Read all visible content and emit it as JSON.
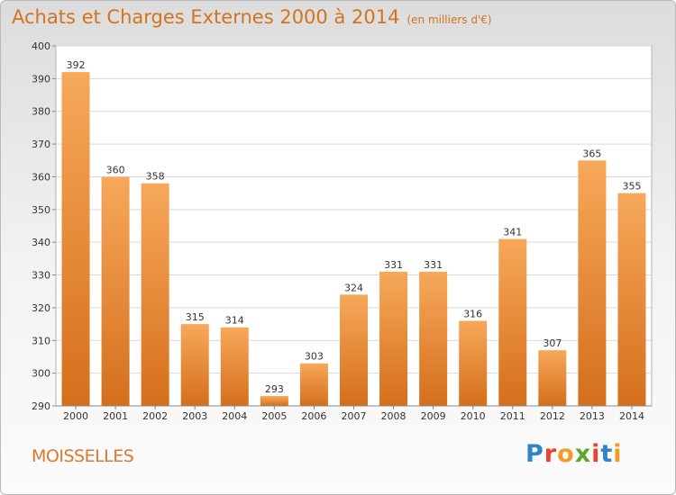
{
  "header": {
    "title": "Achats et Charges Externes 2000 à 2014",
    "subtitle": "(en milliers d'€)"
  },
  "footer": {
    "commune": "MOISSELLES",
    "logo_letters": [
      "P",
      "r",
      "o",
      "x",
      "i",
      "t",
      "i"
    ]
  },
  "colors": {
    "title": "#d4731e",
    "bar_top": "#f7a85a",
    "bar_bottom": "#d46f1c",
    "logo": [
      "#2f83c9",
      "#e8442f",
      "#f39c24",
      "#5aa832",
      "#e8442f",
      "#2f83c9",
      "#f39c24"
    ]
  },
  "chart_data": {
    "type": "bar",
    "title": "Achats et Charges Externes 2000 à 2014",
    "subtitle": "(en milliers d'€)",
    "categories": [
      "2000",
      "2001",
      "2002",
      "2003",
      "2004",
      "2005",
      "2006",
      "2007",
      "2008",
      "2009",
      "2010",
      "2011",
      "2012",
      "2013",
      "2014"
    ],
    "values": [
      392,
      360,
      358,
      315,
      314,
      293,
      303,
      324,
      331,
      331,
      316,
      341,
      307,
      365,
      355
    ],
    "ylim": [
      290,
      400
    ],
    "yticks": [
      290,
      300,
      310,
      320,
      330,
      340,
      350,
      360,
      370,
      380,
      390,
      400
    ],
    "grid": true,
    "data_labels": true
  }
}
